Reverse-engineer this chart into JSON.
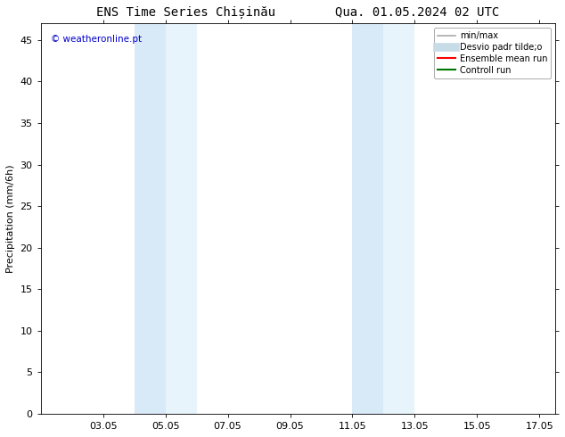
{
  "title": "ENS Time Series Chișinău        Qua. 01.05.2024 02 UTC",
  "ylabel": "Precipitation (mm/6h)",
  "ylim": [
    0,
    47
  ],
  "yticks": [
    0,
    5,
    10,
    15,
    20,
    25,
    30,
    35,
    40,
    45
  ],
  "xlim": [
    1.0,
    17.5
  ],
  "xtick_labels": [
    "03.05",
    "05.05",
    "07.05",
    "09.05",
    "11.05",
    "13.05",
    "15.05",
    "17.05"
  ],
  "xtick_positions": [
    3,
    5,
    7,
    9,
    11,
    13,
    15,
    17
  ],
  "shaded_bands": [
    {
      "x_start": 4.0,
      "x_end": 5.0,
      "color": "#d8eaf8"
    },
    {
      "x_start": 5.0,
      "x_end": 6.0,
      "color": "#e8f4fc"
    },
    {
      "x_start": 11.0,
      "x_end": 12.0,
      "color": "#d8eaf8"
    },
    {
      "x_start": 12.0,
      "x_end": 13.0,
      "color": "#e8f4fc"
    }
  ],
  "background_color": "#ffffff",
  "watermark_text": "© weatheronline.pt",
  "watermark_color": "#0000cc",
  "legend_entries": [
    {
      "label": "min/max",
      "color": "#aaaaaa",
      "lw": 1.2,
      "ls": "-",
      "type": "line"
    },
    {
      "label": "Desvio padr tilde;o",
      "color": "#c8dce8",
      "lw": 7,
      "ls": "-",
      "type": "line"
    },
    {
      "label": "Ensemble mean run",
      "color": "#ff0000",
      "lw": 1.5,
      "ls": "-",
      "type": "line"
    },
    {
      "label": "Controll run",
      "color": "#007700",
      "lw": 1.5,
      "ls": "-",
      "type": "line"
    }
  ],
  "title_fontsize": 10,
  "axis_label_fontsize": 8,
  "tick_fontsize": 8,
  "legend_fontsize": 7
}
